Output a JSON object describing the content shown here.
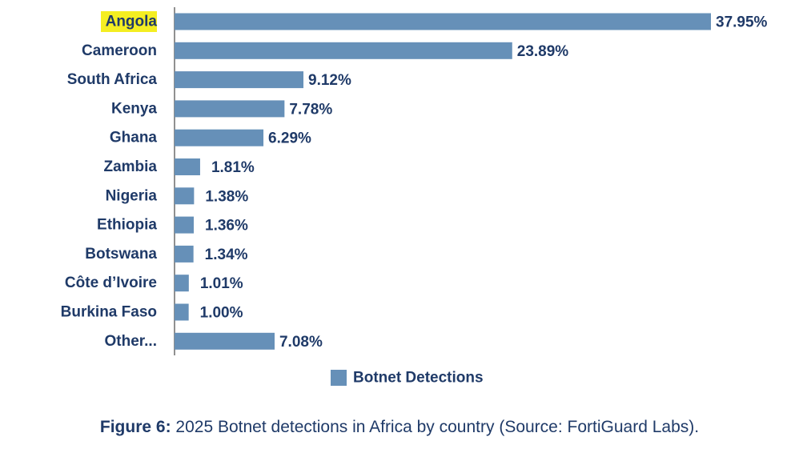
{
  "chart_data": {
    "type": "bar",
    "orientation": "horizontal",
    "categories": [
      "Angola",
      "Cameroon",
      "South Africa",
      "Kenya",
      "Ghana",
      "Zambia",
      "Nigeria",
      "Ethiopia",
      "Botswana",
      "Côte d’Ivoire",
      "Burkina Faso",
      "Other..."
    ],
    "series": [
      {
        "name": "Botnet Detections",
        "values": [
          37.95,
          23.89,
          9.12,
          7.78,
          6.29,
          1.81,
          1.38,
          1.36,
          1.34,
          1.01,
          1.0,
          7.08
        ],
        "labels": [
          "37.95%",
          "23.89%",
          "9.12%",
          "7.78%",
          "6.29%",
          "1.81%",
          "1.38%",
          "1.36%",
          "1.34%",
          "1.01%",
          "1.00%",
          "7.08%"
        ]
      }
    ],
    "xlim": [
      0,
      37.95
    ],
    "highlighted_category": "Angola",
    "legend_position": "bottom",
    "grid": false
  },
  "caption": {
    "label": "Figure 6:",
    "text": " 2025 Botnet detections in Africa by country (Source: FortiGuard Labs)."
  },
  "colors": {
    "bar": "#6690b8",
    "text": "#1f3a68",
    "highlight": "#f4ee22",
    "axis": "#555555"
  }
}
